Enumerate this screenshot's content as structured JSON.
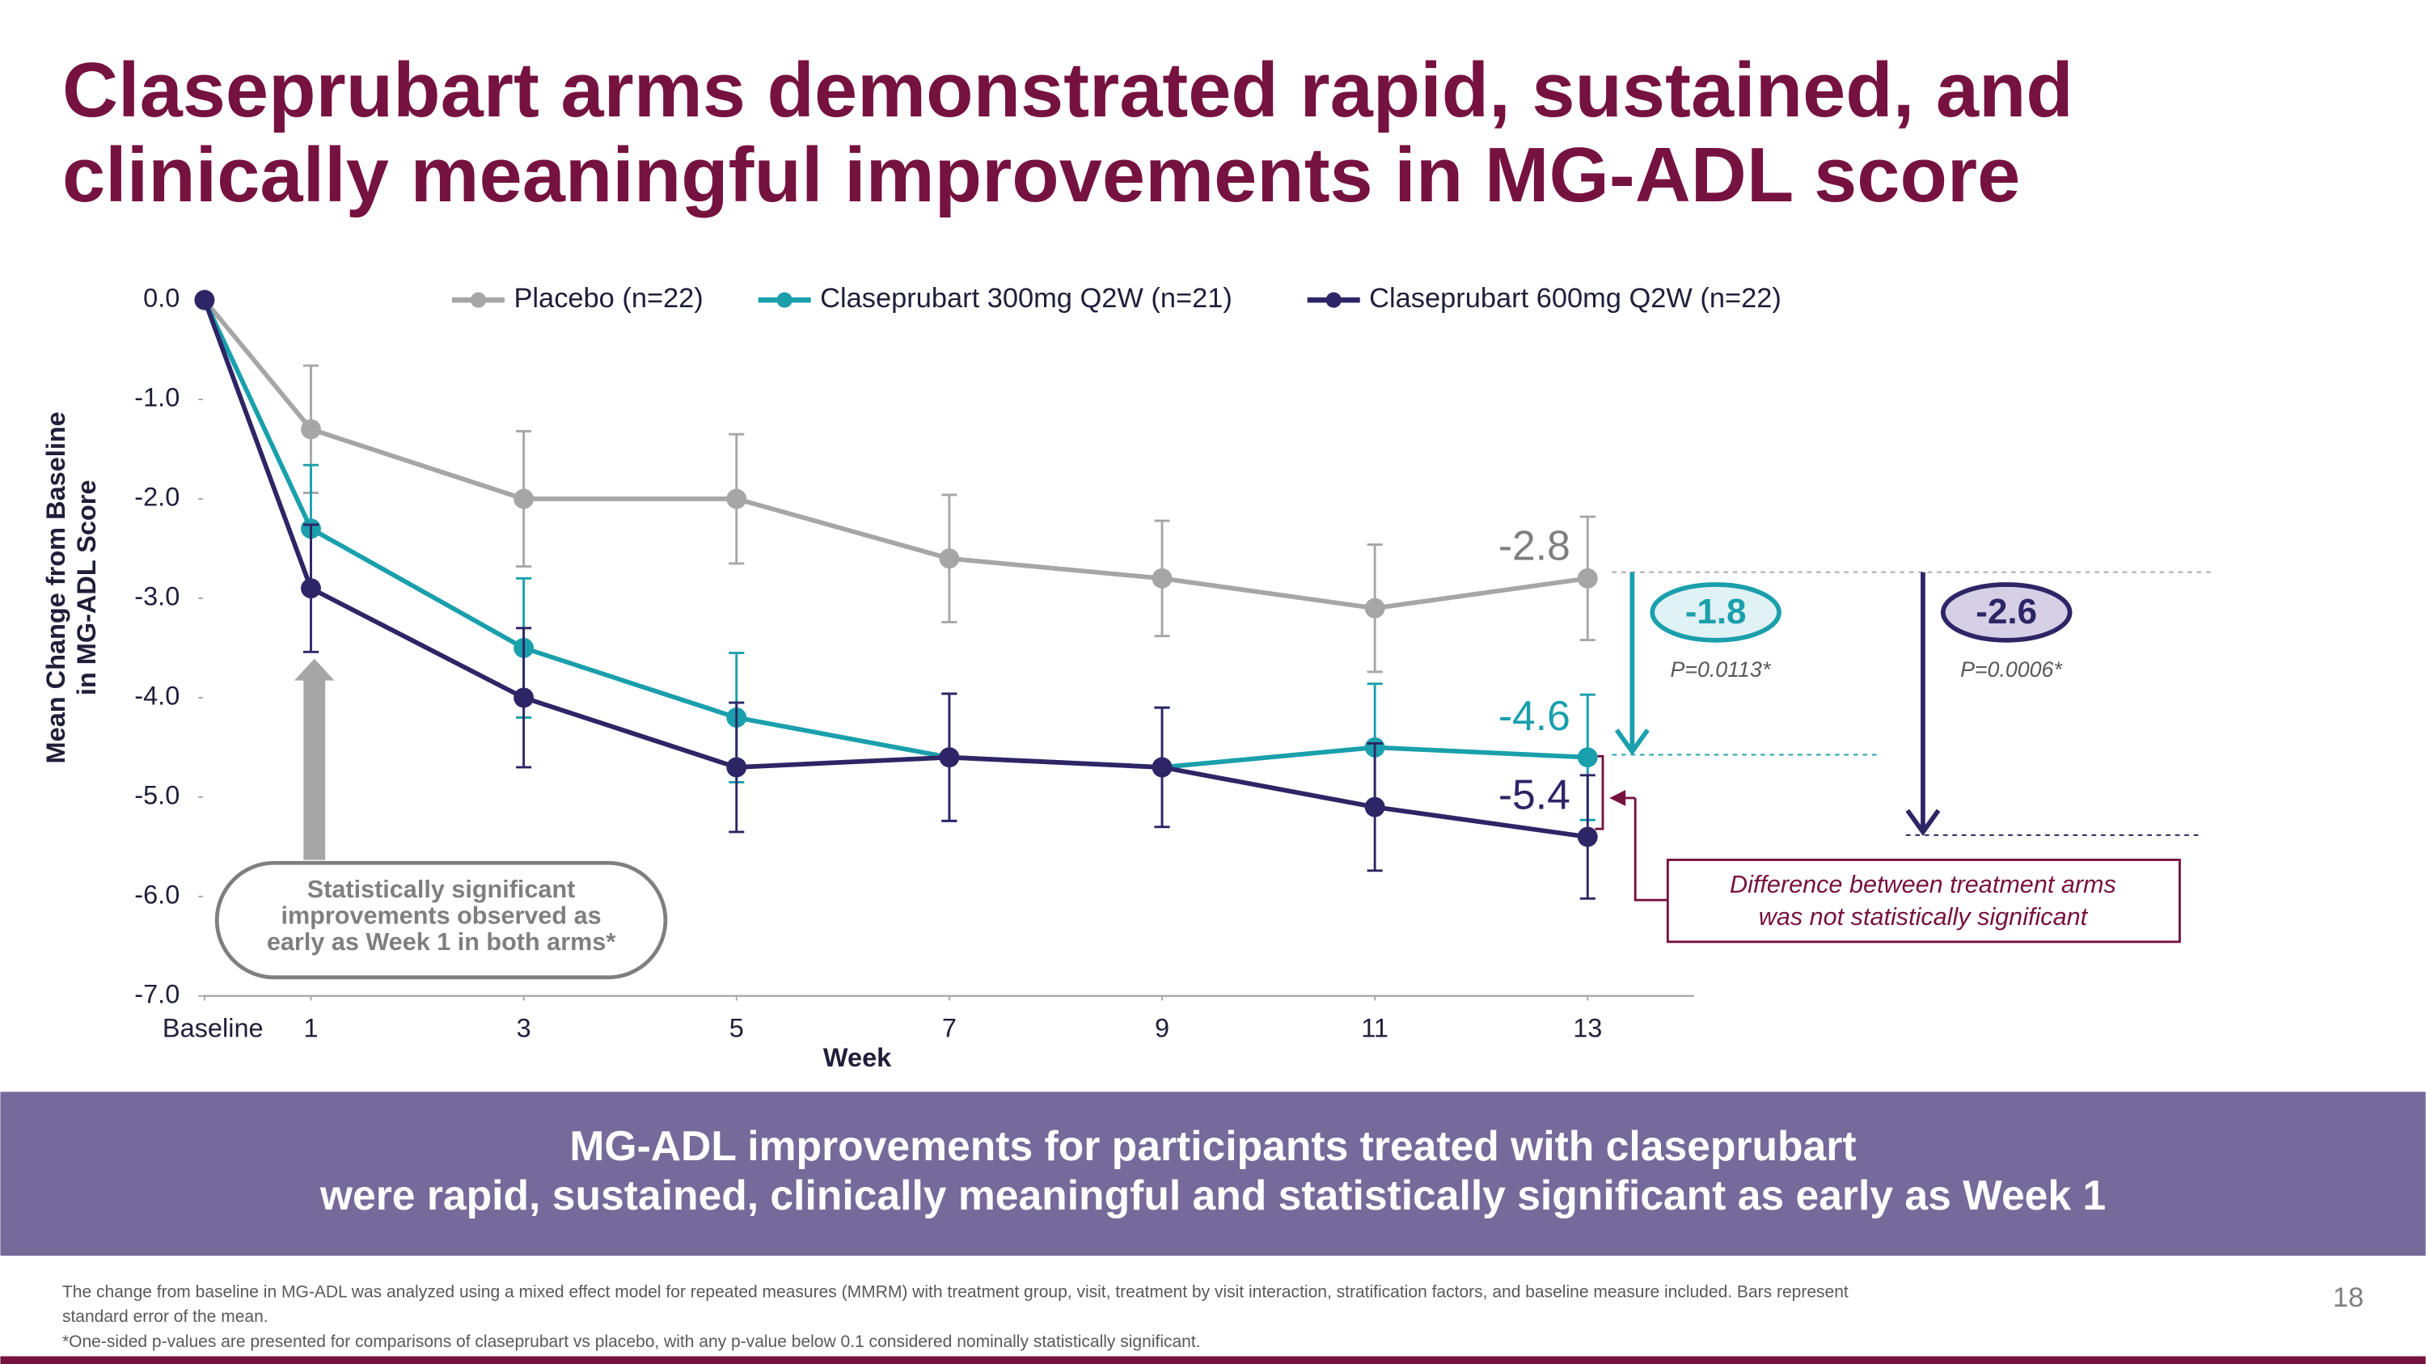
{
  "slide": {
    "title_lines": [
      "Claseprubart arms demonstrated rapid, sustained, and",
      "clinically meaningful improvements in MG-ADL score"
    ],
    "banner_lines": [
      "MG-ADL improvements for participants treated with claseprubart",
      "were rapid, sustained, clinically meaningful and statistically significant as early as Week 1"
    ],
    "footnotes": [
      "The change from baseline in MG-ADL was analyzed using a mixed effect model for repeated measures (MMRM) with treatment group, visit, treatment by visit interaction, stratification factors, and baseline measure included. Bars represent",
      "standard error of the mean.",
      "*One-sided p-values are presented for comparisons of claseprubart vs placebo, with any p-value below 0.1 considered nominally statistically significant."
    ],
    "page_number": "18"
  },
  "chart_data": {
    "type": "line",
    "y_label_lines": [
      "Mean Change from Baseline",
      "in MG-ADL Score"
    ],
    "x_label": "Week",
    "x": [
      0,
      1,
      3,
      5,
      7,
      9,
      11,
      13
    ],
    "xlim": [
      0,
      14
    ],
    "xticks": [
      {
        "value": 0,
        "label": "Baseline"
      },
      1,
      3,
      5,
      7,
      9,
      11,
      13
    ],
    "ylim": [
      -7,
      0
    ],
    "yticks": [
      {
        "value": 0,
        "label": "0.0"
      },
      {
        "value": -1,
        "label": "-1.0"
      },
      {
        "value": -2,
        "label": "-2.0"
      },
      {
        "value": -3,
        "label": "-3.0"
      },
      {
        "value": -4,
        "label": "-4.0"
      },
      {
        "value": -5,
        "label": "-5.0"
      },
      {
        "value": -6,
        "label": "-6.0"
      },
      {
        "value": -7,
        "label": "-7.0"
      }
    ],
    "series": [
      {
        "name": "Placebo (n=22)",
        "color": "#a6a6a6",
        "values": [
          0,
          -1.3,
          -2.0,
          -2.0,
          -2.6,
          -2.8,
          -3.1,
          -2.8
        ],
        "errors": [
          null,
          0.64,
          0.68,
          0.65,
          0.64,
          0.58,
          0.64,
          0.62
        ]
      },
      {
        "name": "Claseprubart 300mg Q2W (n=21)",
        "color": "#1a9fac",
        "values": [
          0,
          -2.3,
          -3.5,
          -4.2,
          -4.6,
          -4.7,
          -4.5,
          -4.6
        ],
        "errors": [
          null,
          0.64,
          0.7,
          0.65,
          0.64,
          0.6,
          0.64,
          0.63
        ]
      },
      {
        "name": "Claseprubart 600mg Q2W (n=22)",
        "color": "#2e2566",
        "values": [
          0,
          -2.9,
          -4.0,
          -4.7,
          -4.6,
          -4.7,
          -5.1,
          -5.4
        ],
        "errors": [
          null,
          0.64,
          0.7,
          0.65,
          0.64,
          0.6,
          0.64,
          0.62
        ]
      }
    ],
    "differences": [
      {
        "value": -1.8,
        "p_value": "P=0.0113*"
      },
      {
        "value": -2.6,
        "p_value": "P=0.0006*"
      }
    ],
    "callout_lines": [
      "Statistically significant",
      "improvements observed as",
      "early as Week 1 in both arms*"
    ],
    "note_lines": [
      "Difference between treatment arms",
      "was not statistically significant"
    ]
  }
}
